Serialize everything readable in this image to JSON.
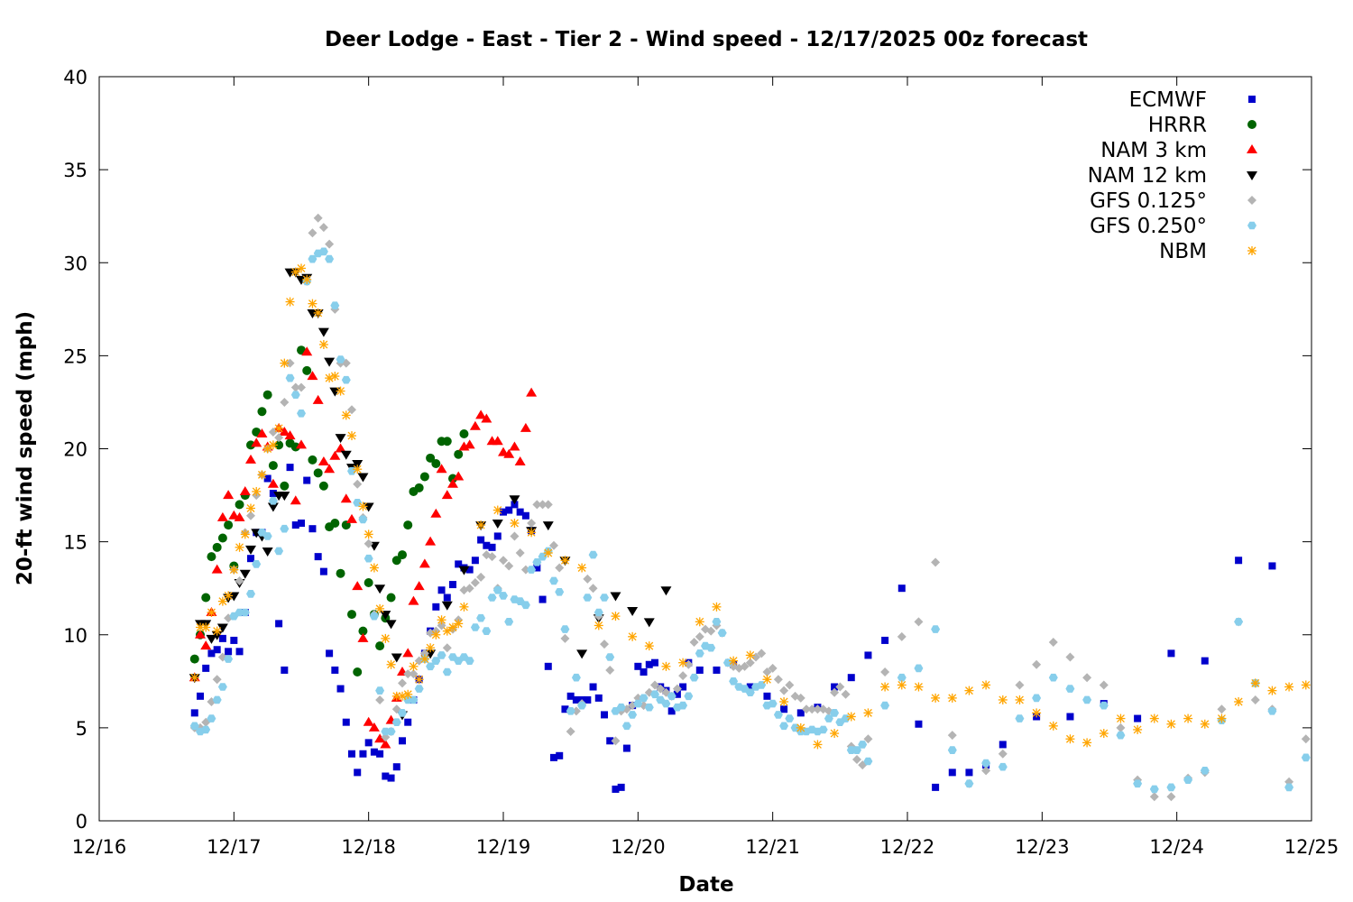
{
  "chart_data": {
    "type": "scatter",
    "title": "Deer Lodge - East - Tier 2 - Wind speed - 12/17/2025 00z forecast",
    "xlabel": "Date",
    "ylabel": "20-ft wind speed (mph)",
    "x_units": "hours since 12/16 00z",
    "xlim": [
      0,
      216
    ],
    "ylim": [
      0,
      40
    ],
    "x_ticks": [
      {
        "hour": 0,
        "label": "12/16"
      },
      {
        "hour": 24,
        "label": "12/17"
      },
      {
        "hour": 48,
        "label": "12/18"
      },
      {
        "hour": 72,
        "label": "12/19"
      },
      {
        "hour": 96,
        "label": "12/20"
      },
      {
        "hour": 120,
        "label": "12/21"
      },
      {
        "hour": 144,
        "label": "12/22"
      },
      {
        "hour": 168,
        "label": "12/23"
      },
      {
        "hour": 192,
        "label": "12/24"
      },
      {
        "hour": 216,
        "label": "12/25"
      }
    ],
    "y_ticks": [
      {
        "value": 0,
        "label": "0"
      },
      {
        "value": 5,
        "label": "5"
      },
      {
        "value": 10,
        "label": "10"
      },
      {
        "value": 15,
        "label": "15"
      },
      {
        "value": 20,
        "label": "20"
      },
      {
        "value": 25,
        "label": "25"
      },
      {
        "value": 30,
        "label": "30"
      },
      {
        "value": 35,
        "label": "35"
      },
      {
        "value": 40,
        "label": "40"
      }
    ],
    "grid": false,
    "legend_position": "top-right",
    "series": [
      {
        "name": "ECMWF",
        "marker": "square",
        "color": "#0000cc",
        "segments": [
          {
            "start": 17,
            "step": 1,
            "values": [
              5.8,
              6.7,
              8.2,
              9.0,
              9.2,
              9.8,
              9.1,
              9.7,
              9.1,
              11.2,
              14.1,
              15.5,
              15.5,
              18.4,
              17.6,
              10.6,
              8.1,
              19.0,
              15.9,
              16.0,
              18.3,
              15.7,
              14.2,
              13.4,
              9.0,
              8.1,
              7.1,
              5.3,
              3.6,
              2.6,
              3.6,
              4.2,
              3.7,
              3.6,
              2.4,
              2.3,
              2.9,
              4.3,
              5.3,
              6.5,
              7.6,
              9.0,
              10.2,
              11.5,
              12.4,
              12.0,
              12.7,
              13.8,
              13.6,
              13.5,
              14.0,
              15.1,
              14.8,
              14.7,
              15.3,
              16.6,
              16.7,
              17.0,
              16.6,
              16.4,
              15.6,
              13.6,
              11.9,
              8.3,
              3.4,
              3.5,
              6.0,
              6.7,
              6.5,
              6.5,
              6.5,
              7.2,
              6.6,
              5.7,
              4.3,
              1.7,
              1.8,
              3.9,
              6.2,
              8.3,
              8.0,
              8.4,
              8.5,
              7.2,
              7.0,
              5.9,
              6.8,
              7.2,
              8.5
            ]
          },
          {
            "start": 107,
            "step": 3,
            "values": [
              8.1,
              8.1,
              8.4,
              7.2,
              6.7,
              6.0,
              5.8,
              6.1,
              7.2,
              7.7,
              8.9,
              9.7,
              12.5,
              5.2,
              1.8,
              2.6,
              2.6,
              3.0,
              4.1
            ]
          },
          {
            "start": 167,
            "step": 6,
            "values": [
              5.6,
              5.6,
              6.3,
              5.5,
              9.0,
              8.6,
              14.0,
              13.7
            ]
          }
        ]
      },
      {
        "name": "HRRR",
        "marker": "circle",
        "color": "#006400",
        "segments": [
          {
            "start": 17,
            "step": 1,
            "values": [
              8.7,
              10.0,
              12.0,
              14.2,
              14.7,
              15.2,
              15.9,
              13.7,
              17.0,
              17.5,
              20.2,
              20.9,
              22.0,
              22.9,
              19.1,
              20.2,
              18.0,
              20.3,
              20.1,
              25.3,
              24.2,
              19.4,
              18.7,
              18.0,
              15.8,
              16.0,
              13.3,
              15.9,
              11.1,
              8.0,
              10.2,
              12.8,
              11.1,
              9.4,
              10.9,
              12.0,
              14.0,
              14.3,
              15.9,
              17.7,
              17.9,
              18.5,
              19.5,
              19.2,
              20.4,
              20.4,
              18.4,
              19.7,
              20.8
            ]
          }
        ]
      },
      {
        "name": "NAM 3 km",
        "marker": "triangle-up",
        "color": "#ff0000",
        "segments": [
          {
            "start": 17,
            "step": 1,
            "values": [
              7.7,
              10.0,
              9.4,
              11.2,
              13.5,
              16.3,
              17.5,
              16.4,
              16.3,
              17.7,
              19.4,
              20.3,
              20.8,
              20.1,
              18.1,
              21.1,
              20.9,
              20.7,
              17.2,
              20.2,
              25.2,
              23.9,
              22.6,
              19.3,
              18.9,
              19.6,
              20.0,
              17.3,
              16.2,
              12.6,
              9.8,
              5.3,
              5.0,
              4.4,
              4.1,
              5.4,
              6.6,
              8.0,
              9.0,
              11.8,
              12.6,
              13.8,
              15.0,
              16.5,
              18.9,
              17.5,
              18.1,
              18.5,
              20.1,
              20.2,
              21.2,
              21.8,
              21.6,
              20.4,
              20.4,
              19.8,
              19.7,
              20.1,
              19.3,
              21.1,
              23.0
            ]
          }
        ]
      },
      {
        "name": "NAM 12 km",
        "marker": "triangle-down",
        "color": "#000000",
        "segments": [
          {
            "start": 17,
            "step": 1,
            "values": [
              7.7,
              10.6,
              10.6,
              9.8,
              10.0,
              10.4,
              12.0,
              12.1,
              12.8,
              13.3,
              14.6,
              15.5,
              15.3,
              14.5,
              16.9,
              17.5,
              17.5,
              29.5,
              29.5,
              29.1,
              29.2,
              27.3,
              27.3,
              26.3,
              24.7,
              23.1,
              20.6,
              19.7,
              19.0,
              19.2,
              18.5,
              16.9,
              14.8,
              12.5,
              11.1,
              10.6,
              8.8,
              5.7
            ]
          },
          {
            "start": 59,
            "step": 3,
            "values": [
              9.0,
              11.6,
              13.5,
              15.9,
              16.0,
              17.3,
              15.6,
              15.9,
              14.0,
              9.0,
              10.9,
              12.1,
              11.3,
              10.7,
              12.4
            ]
          }
        ]
      },
      {
        "name": "GFS 0.125°",
        "marker": "diamond",
        "color": "#b4b4b4",
        "segments": [
          {
            "start": 17,
            "step": 1,
            "values": [
              5.0,
              5.0,
              5.3,
              6.4,
              7.6,
              8.8,
              10.9,
              13.5,
              12.9,
              15.5,
              16.4,
              17.5,
              18.6,
              20.0,
              20.9,
              20.6,
              22.5,
              24.6,
              23.3,
              23.3,
              29.0,
              31.6,
              32.4,
              31.9,
              31.0,
              27.5,
              24.6,
              24.6,
              22.1,
              18.1,
              16.3,
              14.9,
              11.1,
              6.5,
              4.5,
              4.8,
              6.0,
              7.4,
              7.9,
              7.9,
              8.6,
              9.0,
              10.1,
              10.2,
              10.5,
              9.3,
              10.3,
              10.8,
              12.4,
              12.5,
              12.8,
              13.1,
              14.3,
              14.2,
              12.5,
              14.0,
              13.7,
              15.3,
              14.4,
              13.5,
              16.0,
              17.0,
              17.0,
              17.0,
              14.8,
              13.6,
              9.8,
              4.8,
              5.9,
              6.3,
              13.0,
              12.5,
              11.0,
              9.5,
              8.1,
              4.3,
              5.9,
              6.0,
              6.2,
              6.6,
              6.2,
              6.9,
              7.3,
              7.1,
              6.9,
              6.7,
              7.1,
              7.8,
              8.4,
              9.6,
              9.9,
              10.3,
              10.2,
              10.5,
              10.1,
              8.5,
              8.3,
              8.2,
              8.3,
              8.5,
              8.8,
              9.0,
              8.0,
              8.2,
              7.6,
              7.0,
              7.3,
              6.7,
              6.6,
              6.0,
              6.0,
              6.0,
              6.0,
              5.9,
              6.9,
              7.2,
              6.8,
              4.0,
              3.3,
              3.0,
              4.4
            ]
          },
          {
            "start": 140,
            "step": 3,
            "values": [
              8.0,
              9.9,
              10.7,
              13.9,
              4.6,
              2.0,
              2.7,
              3.6,
              7.3,
              8.4,
              9.6,
              8.8,
              7.7,
              7.3,
              5.0,
              2.2,
              1.3,
              1.3,
              2.3,
              2.6,
              6.0,
              10.7,
              6.5,
              6.0,
              2.1,
              4.4
            ]
          }
        ]
      },
      {
        "name": "GFS 0.250°",
        "marker": "hexagon",
        "color": "#87ceeb",
        "segments": [
          {
            "start": 17,
            "step": 1,
            "values": [
              5.1,
              4.8,
              4.9,
              5.5,
              6.5,
              7.2,
              8.7,
              11.0,
              11.2,
              11.2,
              12.2,
              13.8,
              15.5,
              15.3,
              17.2,
              14.5,
              15.7,
              23.8,
              22.9,
              21.9,
              29.0,
              30.2,
              30.5,
              30.6,
              30.2,
              27.7,
              24.8,
              23.7,
              18.8,
              17.1,
              16.2,
              14.1,
              11.0,
              7.0,
              4.8,
              4.8,
              5.3,
              5.8,
              6.5,
              6.5,
              7.1,
              8.7,
              8.3,
              8.6,
              8.9,
              8.0,
              8.8,
              8.6,
              8.8,
              8.6,
              10.4,
              10.9,
              10.2,
              12.0,
              12.4,
              12.1,
              10.7,
              11.9,
              11.8,
              11.6,
              13.5,
              13.9,
              14.2,
              14.5,
              12.9,
              12.3,
              10.3,
              5.9,
              7.7,
              6.2,
              12.0,
              14.3,
              11.2,
              12.0,
              8.8,
              5.9,
              6.1,
              5.1,
              5.7,
              6.3,
              6.6,
              6.1,
              6.8,
              6.5,
              6.3,
              6.7,
              6.1,
              6.2,
              6.7,
              7.7,
              9.0,
              9.4,
              9.3,
              10.7,
              10.1,
              8.5,
              7.5,
              7.2,
              7.1,
              6.9,
              7.2,
              7.3,
              6.2,
              6.3,
              5.7,
              5.1,
              5.5,
              5.0,
              4.8,
              4.8,
              4.9,
              4.8,
              4.9,
              5.5,
              5.8,
              5.3,
              5.5,
              3.8,
              3.8,
              4.1,
              3.2
            ]
          },
          {
            "start": 140,
            "step": 3,
            "values": [
              6.2,
              7.7,
              8.2,
              10.3,
              3.8,
              2.0,
              3.1,
              2.9,
              5.5,
              6.6,
              7.7,
              7.1,
              6.5,
              6.2,
              4.6,
              2.0,
              1.7,
              1.8,
              2.2,
              2.7,
              5.4,
              10.7,
              7.4,
              5.9,
              1.8,
              3.4
            ]
          }
        ]
      },
      {
        "name": "NBM",
        "marker": "asterisk",
        "color": "#ffa500",
        "segments": [
          {
            "start": 17,
            "step": 1,
            "values": [
              7.7,
              10.4,
              10.4,
              11.2,
              10.2,
              11.8,
              12.1,
              13.5,
              14.7,
              15.4,
              16.8,
              17.7,
              18.6,
              20.0,
              20.2,
              21.1,
              24.6,
              27.9,
              29.5,
              29.7,
              29.1,
              27.8,
              27.3,
              25.6,
              23.8,
              23.9,
              23.1,
              21.8,
              20.7,
              18.9,
              16.9,
              15.4,
              13.6,
              11.4,
              9.8,
              8.4,
              6.7,
              6.7,
              6.8,
              8.3,
              7.6,
              8.7,
              9.3,
              10.0,
              10.8,
              10.2,
              10.4,
              10.6,
              11.5
            ]
          },
          {
            "start": 68,
            "step": 3,
            "values": [
              15.9,
              16.7,
              16.0,
              15.5,
              14.4,
              14.0,
              13.6,
              10.5,
              11.0,
              9.9,
              9.4,
              8.3,
              8.5,
              10.7,
              11.5,
              8.6,
              8.9,
              7.6,
              6.4,
              5.0,
              4.1,
              4.7,
              5.6,
              5.8,
              7.2,
              7.3,
              7.2,
              6.6,
              6.6,
              7.0,
              7.3,
              6.5,
              6.5,
              5.8,
              5.1,
              4.4,
              4.2,
              4.7,
              5.5,
              4.9,
              5.5,
              5.2,
              5.5,
              5.2,
              5.5,
              6.4,
              7.4,
              7.0,
              7.2,
              7.3
            ]
          }
        ]
      }
    ]
  }
}
